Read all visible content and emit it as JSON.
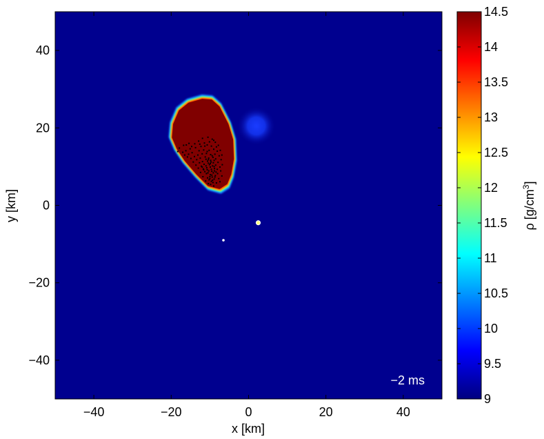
{
  "chart_data": {
    "type": "heatmap",
    "xlabel": "x [km]",
    "ylabel": "y [km]",
    "xlim": [
      -50,
      50
    ],
    "ylim": [
      -50,
      50
    ],
    "xticks": [
      -40,
      -20,
      0,
      20,
      40
    ],
    "yticks": [
      -40,
      -20,
      0,
      20,
      40
    ],
    "colorbar": {
      "label_base": "ρ [g/cm",
      "label_exp": "3",
      "label_end": "]",
      "min": 9,
      "max": 14.5,
      "ticks": [
        9,
        9.5,
        10,
        10.5,
        11,
        11.5,
        12,
        12.5,
        13,
        13.5,
        14,
        14.5
      ],
      "colormap": "jet"
    },
    "annotation": "−2 ms",
    "background_color": "#00008f",
    "features": {
      "dense_blob_outline": [
        [
          -19.5,
          21
        ],
        [
          -18,
          24.5
        ],
        [
          -15.5,
          26.5
        ],
        [
          -12,
          27.5
        ],
        [
          -9.5,
          27.3
        ],
        [
          -7.5,
          25.5
        ],
        [
          -5.2,
          21
        ],
        [
          -4,
          17
        ],
        [
          -3.8,
          12
        ],
        [
          -4.5,
          8
        ],
        [
          -5.5,
          5.5
        ],
        [
          -7.5,
          4.2
        ],
        [
          -10.5,
          5
        ],
        [
          -13.5,
          8
        ],
        [
          -16.5,
          11.5
        ],
        [
          -18.5,
          14.5
        ],
        [
          -19.8,
          17.5
        ]
      ],
      "faint_blob_center": [
        2,
        20.5
      ],
      "faint_blob_radius": 5,
      "small_dot_white": [
        2.5,
        -4.5
      ],
      "small_dot_blue": [
        -6.5,
        -9
      ]
    },
    "scatter_points": [
      [
        -9.8,
        5.4
      ],
      [
        -9.6,
        6.2
      ],
      [
        -9.2,
        5.9
      ],
      [
        -10.2,
        6.6
      ],
      [
        -8.9,
        6.8
      ],
      [
        -9.4,
        7.3
      ],
      [
        -10.6,
        7.1
      ],
      [
        -8.6,
        7.7
      ],
      [
        -9.9,
        7.9
      ],
      [
        -10.9,
        8.2
      ],
      [
        -9.1,
        8.4
      ],
      [
        -8.4,
        8.6
      ],
      [
        -10.3,
        8.9
      ],
      [
        -11.3,
        8.7
      ],
      [
        -9.6,
        9.3
      ],
      [
        -8.8,
        9.5
      ],
      [
        -10.8,
        9.7
      ],
      [
        -11.7,
        9.4
      ],
      [
        -9.3,
        10.2
      ],
      [
        -10.1,
        10.5
      ],
      [
        -8.5,
        10.4
      ],
      [
        -11.5,
        10.6
      ],
      [
        -12.2,
        10.1
      ],
      [
        -9.7,
        11.2
      ],
      [
        -10.6,
        11.4
      ],
      [
        -8.9,
        11.6
      ],
      [
        -11.9,
        11.3
      ],
      [
        -12.7,
        11.0
      ],
      [
        -10.3,
        12.2
      ],
      [
        -9.2,
        12.4
      ],
      [
        -11.2,
        12.5
      ],
      [
        -12.5,
        12.2
      ],
      [
        -13.4,
        11.8
      ],
      [
        -9.8,
        13.1
      ],
      [
        -10.9,
        13.4
      ],
      [
        -8.7,
        13.2
      ],
      [
        -12.0,
        13.3
      ],
      [
        -13.1,
        13.0
      ],
      [
        -14.0,
        12.6
      ],
      [
        -10.2,
        14.2
      ],
      [
        -9.0,
        14.5
      ],
      [
        -11.6,
        14.3
      ],
      [
        -12.8,
        14.1
      ],
      [
        -14.6,
        13.6
      ],
      [
        -15.5,
        13.2
      ],
      [
        -9.6,
        15.3
      ],
      [
        -10.7,
        15.6
      ],
      [
        -8.3,
        15.1
      ],
      [
        -12.3,
        15.2
      ],
      [
        -13.7,
        14.9
      ],
      [
        -15.1,
        14.6
      ],
      [
        -16.2,
        14.1
      ],
      [
        -17.0,
        13.7
      ],
      [
        -17.9,
        14.8
      ],
      [
        -16.8,
        15.5
      ],
      [
        -10.1,
        16.4
      ],
      [
        -9.0,
        16.8
      ],
      [
        -11.4,
        16.1
      ],
      [
        -8.1,
        14.0
      ],
      [
        -7.6,
        12.8
      ],
      [
        -7.9,
        11.1
      ],
      [
        -7.4,
        9.9
      ],
      [
        -8.0,
        8.2
      ],
      [
        -7.7,
        6.9
      ],
      [
        -8.3,
        5.8
      ],
      [
        -9.0,
        5.0
      ],
      [
        -10.4,
        5.6
      ],
      [
        -11.1,
        6.3
      ],
      [
        -11.8,
        7.4
      ],
      [
        -12.4,
        8.5
      ],
      [
        -13.0,
        9.6
      ],
      [
        -13.6,
        10.4
      ],
      [
        -14.3,
        11.2
      ],
      [
        -14.9,
        12.1
      ],
      [
        -15.8,
        12.5
      ],
      [
        -16.5,
        13.0
      ],
      [
        -18.3,
        13.9
      ],
      [
        -12.9,
        16.6
      ],
      [
        -11.9,
        17.3
      ],
      [
        -10.5,
        17.6
      ],
      [
        -9.4,
        17.1
      ],
      [
        -8.6,
        16.3
      ],
      [
        -7.8,
        15.5
      ],
      [
        -7.3,
        14.2
      ],
      [
        -6.9,
        13.0
      ],
      [
        -7.1,
        11.8
      ],
      [
        -6.8,
        10.5
      ],
      [
        -7.2,
        8.9
      ],
      [
        -6.9,
        7.6
      ],
      [
        -7.4,
        6.1
      ],
      [
        -8.1,
        9.3
      ],
      [
        -9.9,
        9.9
      ],
      [
        -10.4,
        10.9
      ],
      [
        -11.0,
        11.9
      ],
      [
        -9.4,
        12.8
      ],
      [
        -10.7,
        13.9
      ],
      [
        -11.3,
        15.3
      ],
      [
        -12.6,
        15.8
      ],
      [
        -13.9,
        15.9
      ],
      [
        -14.7,
        15.2
      ],
      [
        -15.4,
        16.0
      ],
      [
        -16.1,
        15.6
      ],
      [
        -10.0,
        6.9
      ],
      [
        -9.5,
        7.8
      ],
      [
        -10.5,
        8.4
      ],
      [
        -8.8,
        8.9
      ],
      [
        -9.8,
        11.6
      ],
      [
        -8.5,
        12.0
      ],
      [
        -11.6,
        9.2
      ],
      [
        -12.0,
        9.9
      ],
      [
        -9.3,
        6.5
      ],
      [
        -8.7,
        7.3
      ],
      [
        -10.0,
        7.4
      ],
      [
        -9.5,
        8.8
      ],
      [
        -10.7,
        9.2
      ],
      [
        -8.9,
        10.0
      ],
      [
        -9.9,
        10.8
      ],
      [
        -11.0,
        10.2
      ],
      [
        -10.4,
        11.8
      ],
      [
        -9.1,
        11.0
      ]
    ]
  }
}
